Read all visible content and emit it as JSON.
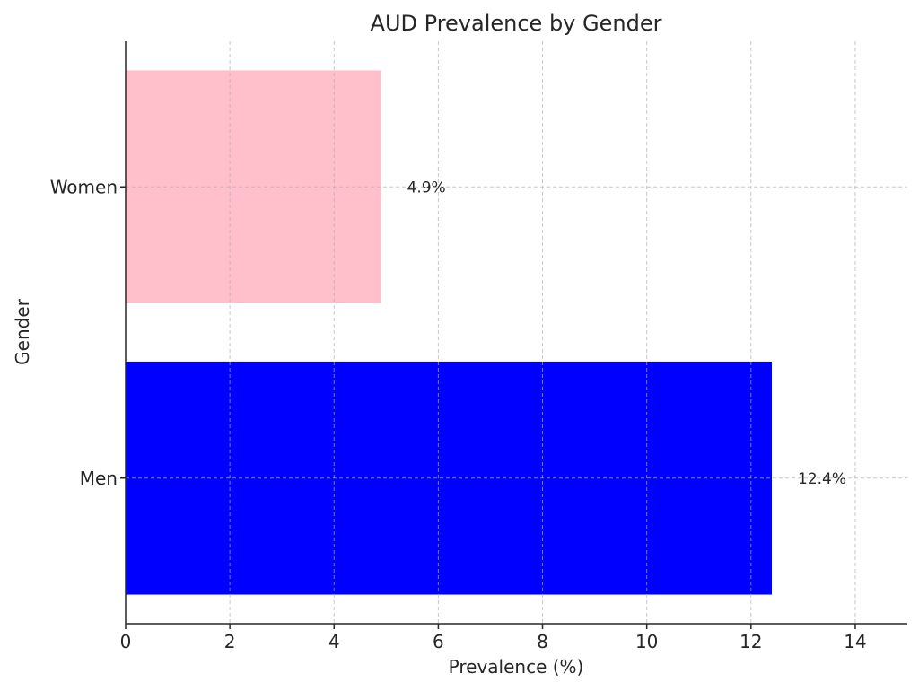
{
  "chart_data": {
    "type": "bar",
    "orientation": "horizontal",
    "title": "AUD Prevalence by Gender",
    "xlabel": "Prevalence (%)",
    "ylabel": "Gender",
    "categories": [
      "Men",
      "Women"
    ],
    "values": [
      12.4,
      4.9
    ],
    "value_labels": [
      "12.4%",
      "4.9%"
    ],
    "colors": [
      "#0000ff",
      "#ffc0cb"
    ],
    "xlim": [
      0,
      15
    ],
    "xticks": [
      0,
      2,
      4,
      6,
      8,
      10,
      12,
      14
    ],
    "grid": true
  }
}
